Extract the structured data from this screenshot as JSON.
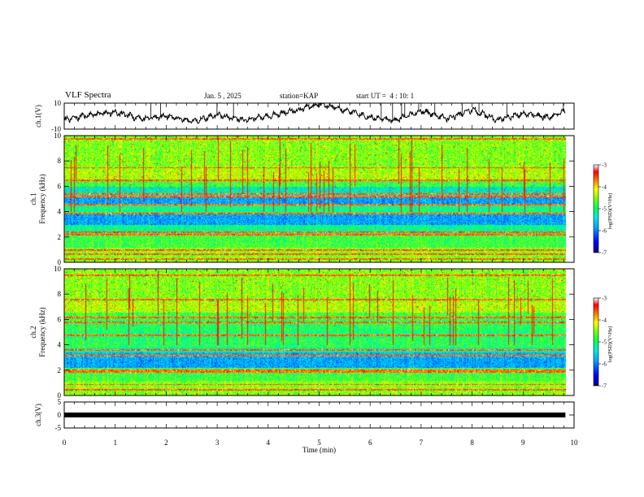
{
  "header": {
    "title": "VLF Spectra",
    "date": "Jan. 5 , 2025",
    "station": "station=KAP",
    "start_ut": "start UT =  4 : 10: 1"
  },
  "chart_data": [
    {
      "type": "line",
      "panel": "ch1-waveform",
      "ylabel": "ch.1(V)",
      "ylim": [
        -10,
        10
      ],
      "yticks": [
        "10",
        "-10"
      ],
      "xlim": [
        0,
        10
      ],
      "x_end": 9.83,
      "description_series": "noisy waveform roughly between -7 and +9 V",
      "series": [
        {
          "name": "ch.1",
          "x": [
            0,
            0.5,
            1,
            1.5,
            2,
            2.5,
            3,
            3.5,
            4,
            4.5,
            5,
            5.5,
            6,
            6.5,
            7,
            7.5,
            8,
            8.5,
            9,
            9.5,
            9.83
          ],
          "values": [
            -3,
            1,
            3,
            -2,
            0,
            -4,
            1,
            -3,
            0,
            4,
            9,
            5,
            -1,
            -3,
            4,
            -2,
            5,
            -3,
            2,
            -1,
            4
          ]
        }
      ]
    },
    {
      "type": "heatmap",
      "panel": "ch1-spectrogram",
      "ylabel": "Frequency (kHz)",
      "channel_label": "ch.1",
      "ylim": [
        0,
        10
      ],
      "yticks": [
        "0",
        "2",
        "4",
        "6",
        "8",
        "10"
      ],
      "xlim": [
        0,
        10
      ],
      "x_end": 9.83,
      "colorbar": {
        "label": "log(PSD)(V²/Hz)",
        "range": [
          -7,
          -3
        ],
        "ticks": [
          "-3",
          "-4",
          "-5",
          "-6",
          "-7"
        ]
      }
    },
    {
      "type": "heatmap",
      "panel": "ch2-spectrogram",
      "ylabel": "Frequency (kHz)",
      "channel_label": "ch.2",
      "ylim": [
        0,
        10
      ],
      "yticks": [
        "0",
        "2",
        "4",
        "6",
        "8",
        "10"
      ],
      "xlim": [
        0,
        10
      ],
      "x_end": 9.83,
      "colorbar": {
        "label": "log(PSD)(V²/Hz)",
        "range": [
          -7,
          -3
        ],
        "ticks": [
          "-3",
          "-4",
          "-5",
          "-6",
          "-7"
        ]
      }
    },
    {
      "type": "line",
      "panel": "ch3-waveform",
      "ylabel": "ch.3(V)",
      "ylim": [
        -5,
        5
      ],
      "yticks": [
        "5",
        "0",
        "-5"
      ],
      "xlim": [
        0,
        10
      ],
      "x_end": 9.83,
      "series": [
        {
          "name": "ch.3",
          "x": [
            0,
            9.83
          ],
          "values": [
            0,
            0
          ]
        }
      ]
    }
  ],
  "xaxis": {
    "label": "Time (min)",
    "ticks": [
      "0",
      "1",
      "2",
      "3",
      "4",
      "5",
      "6",
      "7",
      "8",
      "9",
      "10"
    ]
  },
  "colors": {
    "waveform": "#000000",
    "colormap": [
      "#000080",
      "#0000ff",
      "#00a0ff",
      "#00e8e8",
      "#00ff60",
      "#80ff00",
      "#ffff00",
      "#ff8000",
      "#ff0000",
      "#ffffff"
    ]
  }
}
